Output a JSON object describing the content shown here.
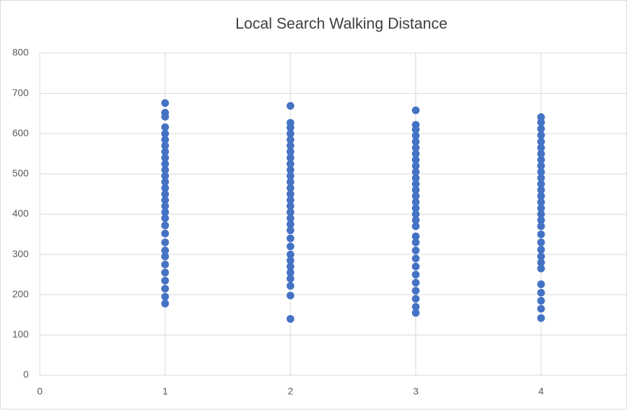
{
  "chart_data": {
    "type": "scatter",
    "title": "Local Search Walking Distance",
    "color": "#4472c4",
    "x": [
      1,
      1,
      1,
      1,
      1,
      1,
      1,
      1,
      1,
      1,
      1,
      1,
      1,
      1,
      1,
      1,
      1,
      1,
      1,
      1,
      1,
      1,
      1,
      1,
      1,
      1,
      1,
      1,
      1,
      1,
      2,
      2,
      2,
      2,
      2,
      2,
      2,
      2,
      2,
      2,
      2,
      2,
      2,
      2,
      2,
      2,
      2,
      2,
      2,
      2,
      2,
      2,
      2,
      2,
      2,
      2,
      2,
      2,
      2,
      2,
      3,
      3,
      3,
      3,
      3,
      3,
      3,
      3,
      3,
      3,
      3,
      3,
      3,
      3,
      3,
      3,
      3,
      3,
      3,
      3,
      3,
      3,
      3,
      3,
      3,
      3,
      3,
      3,
      3,
      3,
      4,
      4,
      4,
      4,
      4,
      4,
      4,
      4,
      4,
      4,
      4,
      4,
      4,
      4,
      4,
      4,
      4,
      4,
      4,
      4,
      4,
      4,
      4,
      4,
      4,
      4,
      4,
      4,
      4,
      4
    ],
    "values": [
      676,
      652,
      642,
      616,
      600,
      585,
      570,
      555,
      540,
      525,
      510,
      495,
      480,
      465,
      450,
      435,
      420,
      405,
      390,
      372,
      352,
      330,
      310,
      295,
      275,
      255,
      235,
      215,
      195,
      178,
      669,
      627,
      615,
      600,
      585,
      570,
      555,
      540,
      525,
      510,
      495,
      480,
      465,
      450,
      435,
      420,
      405,
      390,
      375,
      360,
      340,
      320,
      300,
      285,
      270,
      255,
      240,
      222,
      198,
      140,
      658,
      622,
      610,
      595,
      580,
      565,
      550,
      535,
      520,
      505,
      490,
      475,
      460,
      445,
      430,
      415,
      400,
      385,
      370,
      345,
      330,
      310,
      290,
      270,
      250,
      230,
      210,
      190,
      170,
      155,
      641,
      628,
      612,
      596,
      580,
      565,
      550,
      535,
      520,
      505,
      490,
      475,
      460,
      445,
      430,
      415,
      400,
      385,
      370,
      350,
      330,
      312,
      295,
      280,
      265,
      226,
      205,
      185,
      165,
      142
    ],
    "xlim": [
      0,
      4.68
    ],
    "xticks": [
      0,
      1,
      2,
      3,
      4
    ],
    "ylim": [
      0,
      800
    ],
    "yticks": [
      0,
      100,
      200,
      300,
      400,
      500,
      600,
      700,
      800
    ],
    "grid": true
  }
}
